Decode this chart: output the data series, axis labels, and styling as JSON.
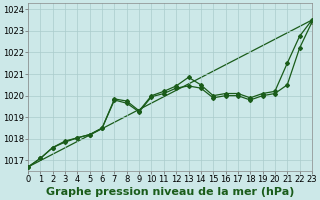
{
  "background_color": "#cce8e8",
  "plot_bg_color": "#cce8e8",
  "grid_color": "#aacccc",
  "line_color": "#1a5c1a",
  "xlabel": "Graphe pression niveau de la mer (hPa)",
  "xlabel_fontsize": 8,
  "ytick_labels": [
    "1017",
    "1018",
    "1019",
    "1020",
    "1021",
    "1022",
    "1023",
    "1024"
  ],
  "ytick_vals": [
    1017,
    1018,
    1019,
    1020,
    1021,
    1022,
    1023,
    1024
  ],
  "xtick_vals": [
    0,
    1,
    2,
    3,
    4,
    5,
    6,
    7,
    8,
    9,
    10,
    11,
    12,
    13,
    14,
    15,
    16,
    17,
    18,
    19,
    20,
    21,
    22,
    23
  ],
  "xlim": [
    0,
    23
  ],
  "ylim": [
    1016.5,
    1024.3
  ],
  "series1_x": [
    0,
    1,
    2,
    3,
    4,
    5,
    6,
    7,
    8,
    9,
    10,
    11,
    12,
    13,
    14,
    15,
    16,
    17,
    18,
    19,
    20,
    21,
    22,
    23
  ],
  "series1_y": [
    1016.7,
    1017.1,
    1017.6,
    1017.85,
    1018.05,
    1018.2,
    1018.5,
    1019.85,
    1019.75,
    1019.3,
    1020.0,
    1020.2,
    1020.45,
    1020.85,
    1020.5,
    1020.0,
    1020.1,
    1020.1,
    1019.9,
    1020.1,
    1020.2,
    1021.5,
    1022.75,
    1023.5
  ],
  "series2_x": [
    0,
    1,
    2,
    3,
    4,
    5,
    6,
    7,
    8,
    9,
    10,
    11,
    12,
    13,
    14,
    15,
    16,
    17,
    18,
    19,
    20,
    21,
    22,
    23
  ],
  "series2_y": [
    1016.7,
    1017.1,
    1017.6,
    1017.9,
    1018.05,
    1018.2,
    1018.5,
    1019.8,
    1019.65,
    1019.25,
    1019.95,
    1020.1,
    1020.35,
    1020.45,
    1020.35,
    1019.9,
    1020.0,
    1020.0,
    1019.8,
    1020.0,
    1020.1,
    1020.5,
    1022.2,
    1023.4
  ],
  "series3_x": [
    0,
    23
  ],
  "series3_y": [
    1016.7,
    1023.5
  ],
  "tick_fontsize": 6,
  "linewidth": 0.9,
  "marker": "D",
  "markersize": 2.0
}
